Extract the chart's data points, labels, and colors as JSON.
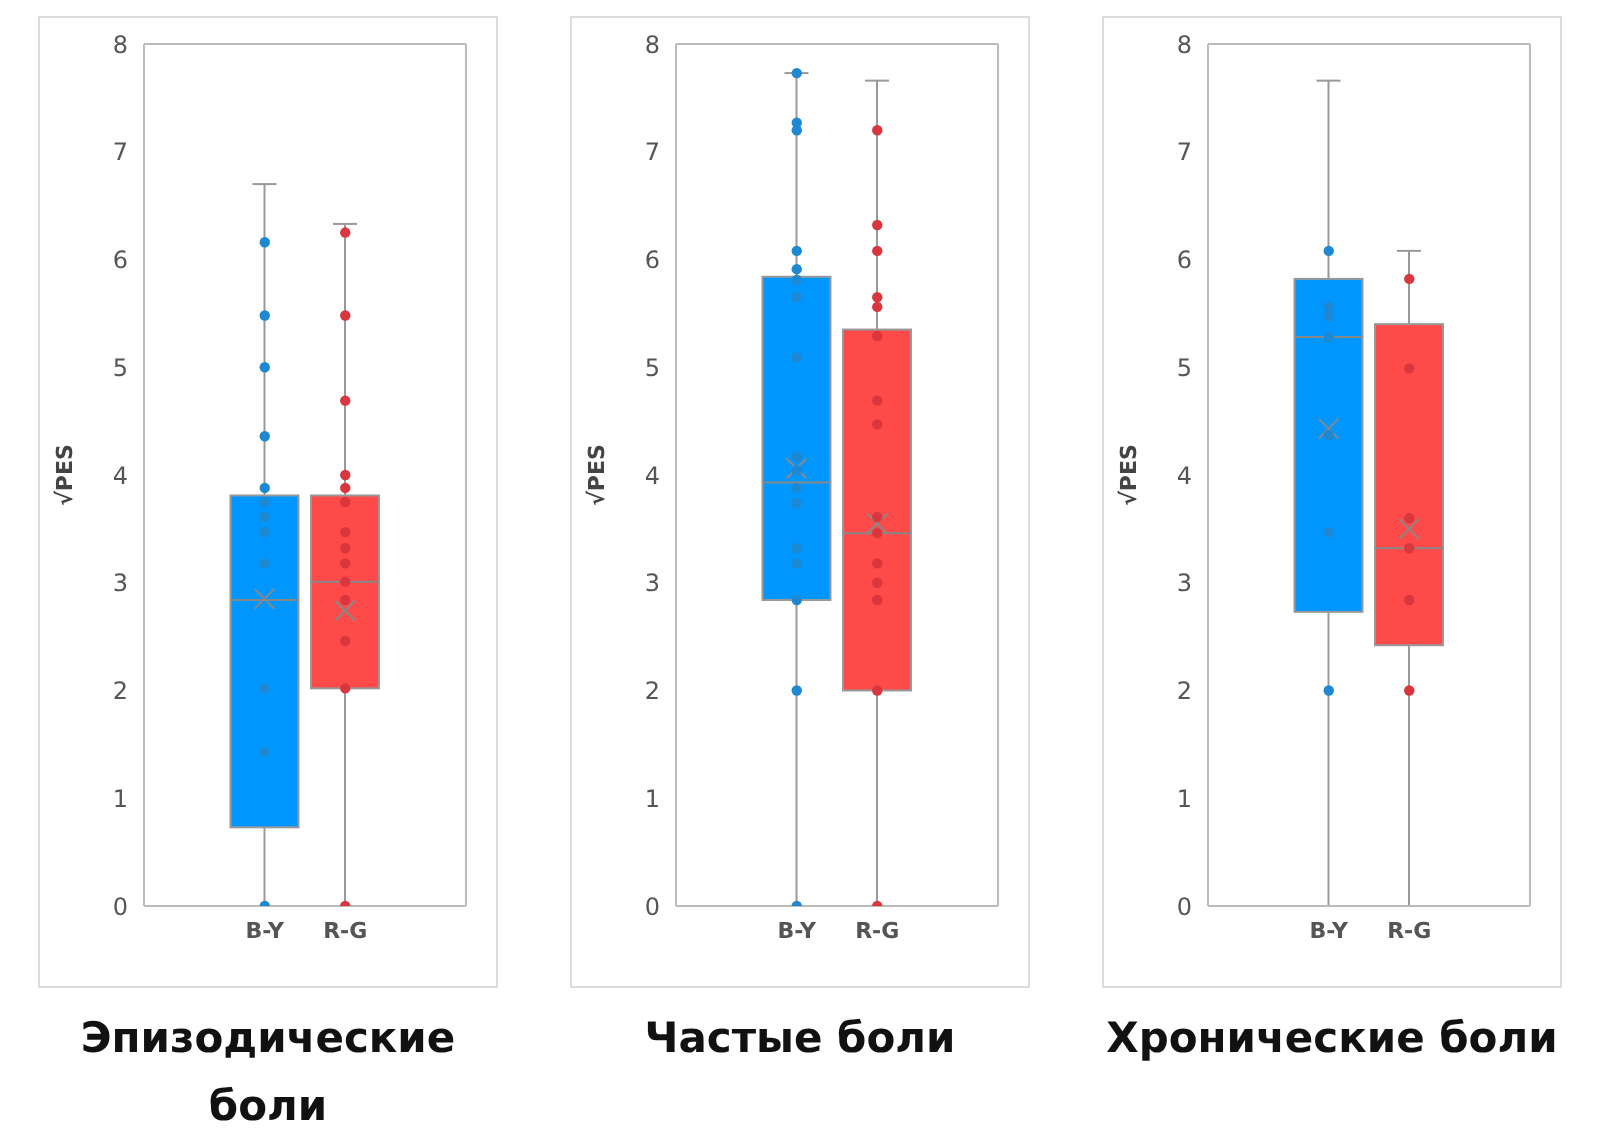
{
  "chart_data": [
    {
      "type": "box",
      "title": "Эпизодические боли",
      "ylabel": "√PES",
      "categories": [
        "B-Y",
        "R-G"
      ],
      "colors": [
        "#0096ff",
        "#ff4a4a"
      ],
      "ylim": [
        0,
        8
      ],
      "yticks": [
        0,
        1,
        2,
        3,
        4,
        5,
        6,
        7,
        8
      ],
      "boxes": [
        {
          "low": 0,
          "q1": 0.73,
          "median": 2.84,
          "q3": 3.81,
          "high": 6.7,
          "mean": 2.85
        },
        {
          "low": 0,
          "q1": 2.02,
          "median": 3.01,
          "q3": 3.81,
          "high": 6.33,
          "mean": 2.74
        }
      ],
      "series": [
        {
          "type": "scatter",
          "color": "#1e88d2",
          "x": [
            "B-Y",
            "B-Y",
            "B-Y",
            "B-Y",
            "B-Y",
            "B-Y",
            "B-Y",
            "B-Y",
            "B-Y",
            "B-Y",
            "B-Y",
            "B-Y"
          ],
          "values": [
            6.16,
            5.48,
            5.0,
            4.36,
            3.88,
            3.75,
            3.61,
            3.47,
            3.18,
            2.02,
            1.43,
            0
          ]
        },
        {
          "type": "scatter",
          "color": "#d9363e",
          "x": [
            "R-G",
            "R-G",
            "R-G",
            "R-G",
            "R-G",
            "R-G",
            "R-G",
            "R-G",
            "R-G",
            "R-G",
            "R-G",
            "R-G",
            "R-G",
            "R-G"
          ],
          "values": [
            6.25,
            5.48,
            4.69,
            4.0,
            3.88,
            3.75,
            3.47,
            3.32,
            3.18,
            3.01,
            2.84,
            2.46,
            2.02,
            0
          ]
        }
      ]
    },
    {
      "type": "box",
      "title": "Частые боли",
      "ylabel": "√PES",
      "categories": [
        "B-Y",
        "R-G"
      ],
      "colors": [
        "#0096ff",
        "#ff4a4a"
      ],
      "ylim": [
        0,
        8
      ],
      "yticks": [
        0,
        1,
        2,
        3,
        4,
        5,
        6,
        7,
        8
      ],
      "boxes": [
        {
          "low": 0,
          "q1": 2.84,
          "median": 3.93,
          "q3": 5.84,
          "high": 7.73,
          "mean": 4.06
        },
        {
          "low": 0,
          "q1": 2.0,
          "median": 3.46,
          "q3": 5.35,
          "high": 7.66,
          "mean": 3.55
        }
      ],
      "series": [
        {
          "type": "scatter",
          "color": "#1e88d2",
          "x": [
            "B-Y",
            "B-Y",
            "B-Y",
            "B-Y",
            "B-Y",
            "B-Y",
            "B-Y",
            "B-Y",
            "B-Y",
            "B-Y",
            "B-Y",
            "B-Y",
            "B-Y",
            "B-Y",
            "B-Y",
            "B-Y",
            "B-Y"
          ],
          "values": [
            7.73,
            7.27,
            7.2,
            6.08,
            5.91,
            5.81,
            5.65,
            5.09,
            4.17,
            4.04,
            3.88,
            3.74,
            3.32,
            3.18,
            2.84,
            2.0,
            0
          ]
        },
        {
          "type": "scatter",
          "color": "#d9363e",
          "x": [
            "R-G",
            "R-G",
            "R-G",
            "R-G",
            "R-G",
            "R-G",
            "R-G",
            "R-G",
            "R-G",
            "R-G",
            "R-G",
            "R-G",
            "R-G",
            "R-G",
            "R-G"
          ],
          "values": [
            7.2,
            6.32,
            6.08,
            5.65,
            5.56,
            5.29,
            4.69,
            4.47,
            3.61,
            3.46,
            3.18,
            3.0,
            2.84,
            2.0,
            0
          ]
        }
      ]
    },
    {
      "type": "box",
      "title": "Хронические боли",
      "ylabel": "√PES",
      "categories": [
        "B-Y",
        "R-G"
      ],
      "colors": [
        "#0096ff",
        "#ff4a4a"
      ],
      "ylim": [
        0,
        8
      ],
      "yticks": [
        0,
        1,
        2,
        3,
        4,
        5,
        6,
        7,
        8
      ],
      "boxes": [
        {
          "low": 0,
          "q1": 2.73,
          "median": 5.28,
          "q3": 5.82,
          "high": 7.66,
          "mean": 4.43
        },
        {
          "low": 0,
          "q1": 2.42,
          "median": 3.32,
          "q3": 5.4,
          "high": 6.08,
          "mean": 3.5
        }
      ],
      "series": [
        {
          "type": "scatter",
          "color": "#1e88d2",
          "x": [
            "B-Y",
            "B-Y",
            "B-Y",
            "B-Y",
            "B-Y",
            "B-Y",
            "B-Y"
          ],
          "values": [
            6.08,
            5.56,
            5.47,
            5.28,
            4.37,
            3.47,
            2.0
          ]
        },
        {
          "type": "scatter",
          "color": "#d9363e",
          "x": [
            "R-G",
            "R-G",
            "R-G",
            "R-G",
            "R-G",
            "R-G"
          ],
          "values": [
            5.82,
            4.99,
            3.6,
            3.32,
            2.84,
            2.0
          ]
        }
      ]
    }
  ]
}
